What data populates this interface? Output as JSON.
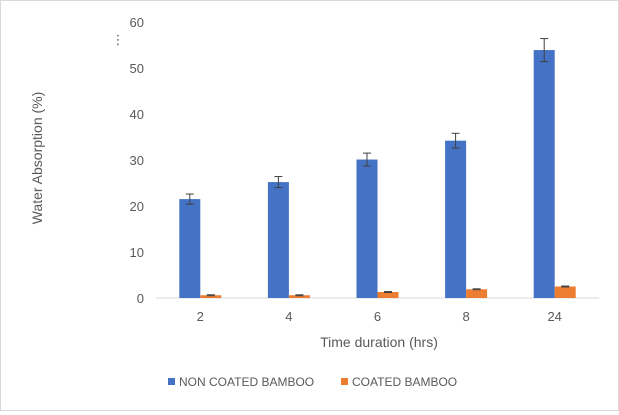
{
  "chart_data": {
    "type": "bar",
    "title": "",
    "xlabel": "Time duration (hrs)",
    "ylabel": "Water Absorption (%)",
    "categories": [
      "2",
      "4",
      "6",
      "8",
      "24"
    ],
    "ylim": [
      0,
      60
    ],
    "yticks": [
      0,
      10,
      20,
      30,
      40,
      50,
      60
    ],
    "grid": false,
    "legend_position": "bottom",
    "series": [
      {
        "name": "NON COATED BAMBOO",
        "color": "#4472c4",
        "values": [
          21.5,
          25.2,
          30.1,
          34.2,
          53.9
        ],
        "errors": [
          1.1,
          1.2,
          1.4,
          1.6,
          2.5
        ]
      },
      {
        "name": "COATED BAMBOO",
        "color": "#ed7d31",
        "values": [
          0.6,
          0.6,
          1.3,
          1.9,
          2.5
        ],
        "errors": [
          0.1,
          0.1,
          0.1,
          0.1,
          0.1
        ]
      }
    ]
  }
}
